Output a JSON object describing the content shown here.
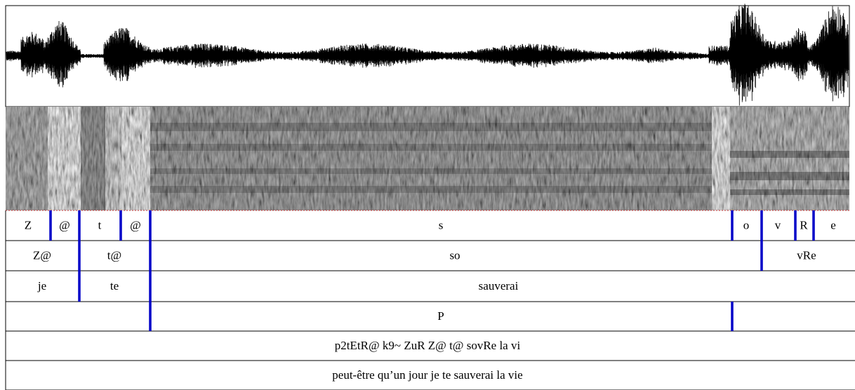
{
  "tiers": [
    {
      "labels": [
        "Z",
        "@",
        "t",
        "@",
        "s",
        "o",
        "v",
        "R",
        "e"
      ]
    },
    {
      "labels": [
        "Z@",
        "t@",
        "so",
        "vRe"
      ]
    },
    {
      "labels": [
        "je",
        "te",
        "sauverai"
      ]
    },
    {
      "labels": [
        "P"
      ]
    },
    {
      "labels": [
        "p2tEtR@ k9~ ZuR Z@ t@ sovRe la vi"
      ]
    },
    {
      "labels": [
        "peut-être qu’un jour je te sauverai la vie"
      ]
    }
  ]
}
